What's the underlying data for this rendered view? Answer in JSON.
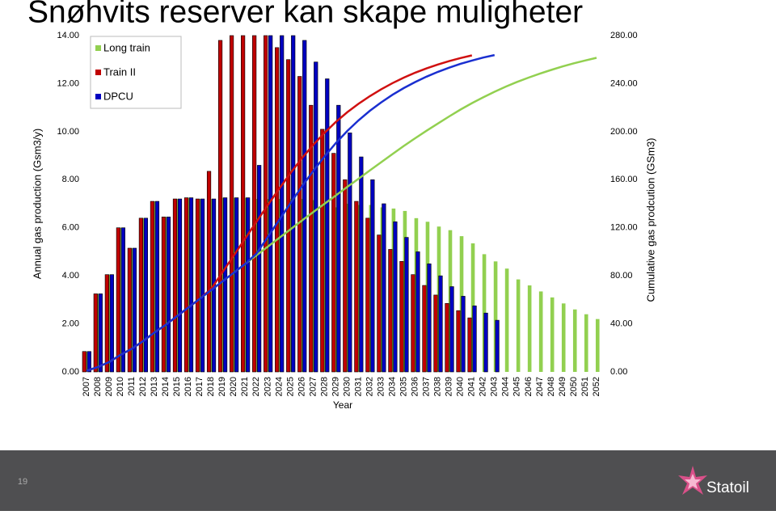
{
  "chart_data": {
    "type": "combo",
    "title": "Snøhvits reserver kan skape muligheter",
    "xlabel": "Year",
    "ylabel": "Annual gas production (Gsm3/y)",
    "y2label": "Cumulative gas prodcution (GSm3)",
    "categories": [
      "2007",
      "2008",
      "2009",
      "2010",
      "2011",
      "2012",
      "2013",
      "2014",
      "2015",
      "2016",
      "2017",
      "2018",
      "2019",
      "2020",
      "2021",
      "2022",
      "2023",
      "2024",
      "2025",
      "2026",
      "2027",
      "2028",
      "2029",
      "2030",
      "2031",
      "2032",
      "2033",
      "2034",
      "2035",
      "2036",
      "2037",
      "2038",
      "2039",
      "2040",
      "2041",
      "2042",
      "2043",
      "2044",
      "2045",
      "2046",
      "2047",
      "2048",
      "2049",
      "2050",
      "2051",
      "2052"
    ],
    "ylim": [
      0,
      14
    ],
    "yticks": [
      {
        "value": 0,
        "label": "0.00"
      },
      {
        "value": 2,
        "label": "2.00"
      },
      {
        "value": 4,
        "label": "4.00"
      },
      {
        "value": 6,
        "label": "6.00"
      },
      {
        "value": 8,
        "label": "8.00"
      },
      {
        "value": 10,
        "label": "10.00"
      },
      {
        "value": 12,
        "label": "12.00"
      },
      {
        "value": 14,
        "label": "14.00"
      }
    ],
    "y2lim": [
      0,
      280
    ],
    "y2ticks": [
      {
        "value": 0,
        "label": "0.00"
      },
      {
        "value": 40,
        "label": "40.00"
      },
      {
        "value": 80,
        "label": "80.00"
      },
      {
        "value": 120,
        "label": "120.00"
      },
      {
        "value": 160,
        "label": "160.00"
      },
      {
        "value": 200,
        "label": "200.00"
      },
      {
        "value": 240,
        "label": "240.00"
      },
      {
        "value": 280,
        "label": "280.00"
      }
    ],
    "grid": false,
    "legend": "top-left",
    "series": [
      {
        "name": "Long train",
        "type": "bar",
        "color": "#92d050",
        "values": [
          0.85,
          3.25,
          4.05,
          6.0,
          5.15,
          6.4,
          7.1,
          6.45,
          7.2,
          7.25,
          7.2,
          7.2,
          7.25,
          7.25,
          7.25,
          7.2,
          7.2,
          7.2,
          7.2,
          7.2,
          7.15,
          7.0,
          6.85,
          7.0,
          6.95,
          6.95,
          6.85,
          6.8,
          6.7,
          6.4,
          6.25,
          6.05,
          5.9,
          5.65,
          5.35,
          4.9,
          4.6,
          4.3,
          3.85,
          3.6,
          3.35,
          3.1,
          2.85,
          2.6,
          2.4,
          2.2
        ]
      },
      {
        "name": "Train II",
        "type": "bar",
        "color": "#c00000",
        "values": [
          0.85,
          3.25,
          4.05,
          6.0,
          5.15,
          6.4,
          7.1,
          6.45,
          7.2,
          7.25,
          7.2,
          8.35,
          13.8,
          14,
          14,
          14,
          14,
          13.5,
          13.0,
          12.3,
          11.1,
          10.1,
          9.1,
          8.0,
          7.1,
          6.4,
          5.7,
          5.1,
          4.6,
          4.05,
          3.6,
          3.2,
          2.85,
          2.55,
          2.25,
          null,
          null,
          null,
          null,
          null,
          null,
          null,
          null,
          null,
          null,
          null
        ]
      },
      {
        "name": "DPCU",
        "type": "bar",
        "color": "#0000c0",
        "values": [
          0.85,
          3.25,
          4.05,
          6.0,
          5.15,
          6.4,
          7.1,
          6.45,
          7.2,
          7.25,
          7.2,
          7.2,
          7.25,
          7.25,
          7.25,
          8.6,
          14,
          14,
          14,
          13.8,
          12.9,
          12.2,
          11.1,
          9.95,
          8.95,
          8.0,
          7.0,
          6.25,
          5.6,
          5.0,
          4.5,
          4.0,
          3.55,
          3.15,
          2.75,
          2.45,
          2.15,
          null,
          null,
          null,
          null,
          null,
          null,
          null,
          null,
          null
        ]
      },
      {
        "type": "line",
        "axis": "y2",
        "color": "#92d050",
        "values": [
          0.9,
          4.1,
          8.2,
          14.2,
          19.3,
          25.7,
          32.8,
          39.3,
          46.5,
          53.7,
          60.9,
          68.1,
          75.4,
          82.6,
          89.9,
          97.1,
          104.3,
          111.5,
          118.7,
          125.9,
          133.0,
          140.0,
          146.9,
          153.9,
          160.8,
          167.8,
          174.6,
          181.4,
          188.1,
          194.5,
          200.8,
          206.8,
          212.7,
          218.4,
          223.7,
          228.6,
          233.2,
          237.5,
          241.4,
          245.0,
          248.3,
          251.4,
          254.3,
          256.9,
          259.3,
          261.5
        ]
      },
      {
        "type": "line",
        "axis": "y2",
        "color": "#d01010",
        "values": [
          0.9,
          4.1,
          8.2,
          14.2,
          19.3,
          25.7,
          32.8,
          39.3,
          46.5,
          53.7,
          60.9,
          69.2,
          83.0,
          97.0,
          111.0,
          125.0,
          139.0,
          152.5,
          165.5,
          177.8,
          188.9,
          199.0,
          208.1,
          216.1,
          223.2,
          229.6,
          235.3,
          240.4,
          245.0,
          249.1,
          252.7,
          255.9,
          258.7,
          261.3,
          263.5,
          null,
          null,
          null,
          null,
          null,
          null,
          null,
          null,
          null,
          null,
          null
        ]
      },
      {
        "type": "line",
        "axis": "y2",
        "color": "#1a2fd0",
        "values": [
          0.9,
          4.1,
          8.2,
          14.2,
          19.3,
          25.7,
          32.8,
          39.3,
          46.5,
          53.7,
          60.9,
          68.1,
          75.4,
          82.6,
          89.9,
          98.5,
          112.5,
          126.5,
          140.5,
          154.3,
          167.2,
          179.4,
          190.5,
          200.5,
          209.4,
          217.4,
          224.4,
          230.7,
          236.3,
          241.3,
          245.8,
          249.8,
          253.3,
          256.5,
          259.2,
          261.7,
          263.8,
          null,
          null,
          null,
          null,
          null,
          null,
          null,
          null,
          null
        ]
      }
    ]
  },
  "footer": {
    "page_number": "19",
    "logo_text": "Statoil"
  }
}
